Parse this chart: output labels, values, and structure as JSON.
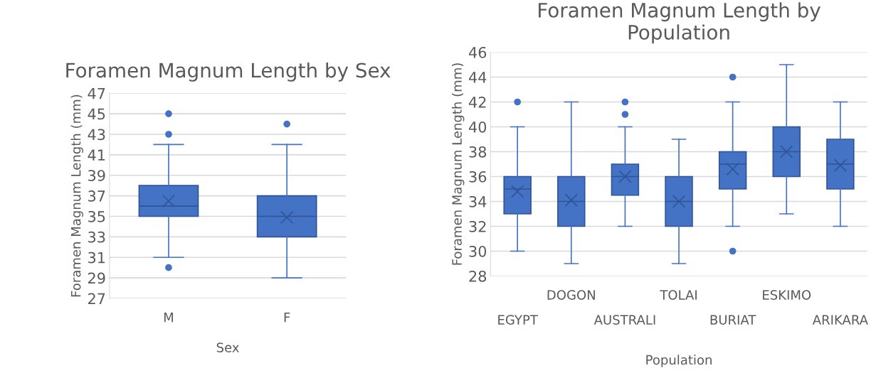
{
  "chart_data": [
    {
      "type": "box",
      "title": "Foramen Magnum Length by Sex",
      "xlabel": "Sex",
      "ylabel": "Foramen Magnum Length (mm)",
      "categories": [
        "M",
        "F"
      ],
      "series": [
        {
          "color": "#4472c4",
          "boxes": [
            {
              "low": 31,
              "q1": 35,
              "median": 36,
              "q3": 38,
              "high": 42,
              "mean": 36.5,
              "outliers": [
                45,
                43,
                30
              ]
            },
            {
              "low": 29,
              "q1": 33,
              "median": 35,
              "q3": 37,
              "high": 42,
              "mean": 34.9,
              "outliers": [
                44
              ]
            }
          ]
        }
      ],
      "ylim": [
        27,
        47
      ],
      "yticks": [
        27,
        29,
        31,
        33,
        35,
        37,
        39,
        41,
        43,
        45,
        47
      ],
      "grid": "y",
      "legend": false,
      "marker": "circle"
    },
    {
      "type": "box",
      "title": "Foramen Magnum Length by Population",
      "xlabel": "Population",
      "ylabel": "Foramen Magnum Length (mm)",
      "categories": [
        "EGYPT",
        "DOGON",
        "AUSTRALI",
        "TOLAI",
        "BURIAT",
        "ESKIMO",
        "ARIKARA"
      ],
      "series": [
        {
          "color": "#4472c4",
          "boxes": [
            {
              "low": 30,
              "q1": 33,
              "median": 35,
              "q3": 36,
              "high": 40,
              "mean": 34.8,
              "outliers": [
                42
              ]
            },
            {
              "low": 29,
              "q1": 32,
              "median": 34,
              "q3": 36,
              "high": 42,
              "mean": 34.1
            },
            {
              "low": 32,
              "q1": 34.5,
              "median": 36,
              "q3": 37,
              "high": 40,
              "mean": 36,
              "outliers": [
                41,
                42
              ]
            },
            {
              "low": 29,
              "q1": 32,
              "median": 34,
              "q3": 36,
              "high": 39,
              "mean": 34
            },
            {
              "low": 32,
              "q1": 35,
              "median": 37,
              "q3": 38,
              "high": 42,
              "mean": 36.6,
              "outliers": [
                44,
                30
              ]
            },
            {
              "low": 33,
              "q1": 36,
              "median": 38,
              "q3": 40,
              "high": 45,
              "mean": 38
            },
            {
              "low": 32,
              "q1": 35,
              "median": 37,
              "q3": 39,
              "high": 42,
              "mean": 36.9
            }
          ]
        }
      ],
      "ylim": [
        28,
        46
      ],
      "yticks": [
        28,
        30,
        32,
        34,
        36,
        38,
        40,
        42,
        44,
        46
      ],
      "grid": "y",
      "legend": false,
      "marker": "circle"
    }
  ]
}
